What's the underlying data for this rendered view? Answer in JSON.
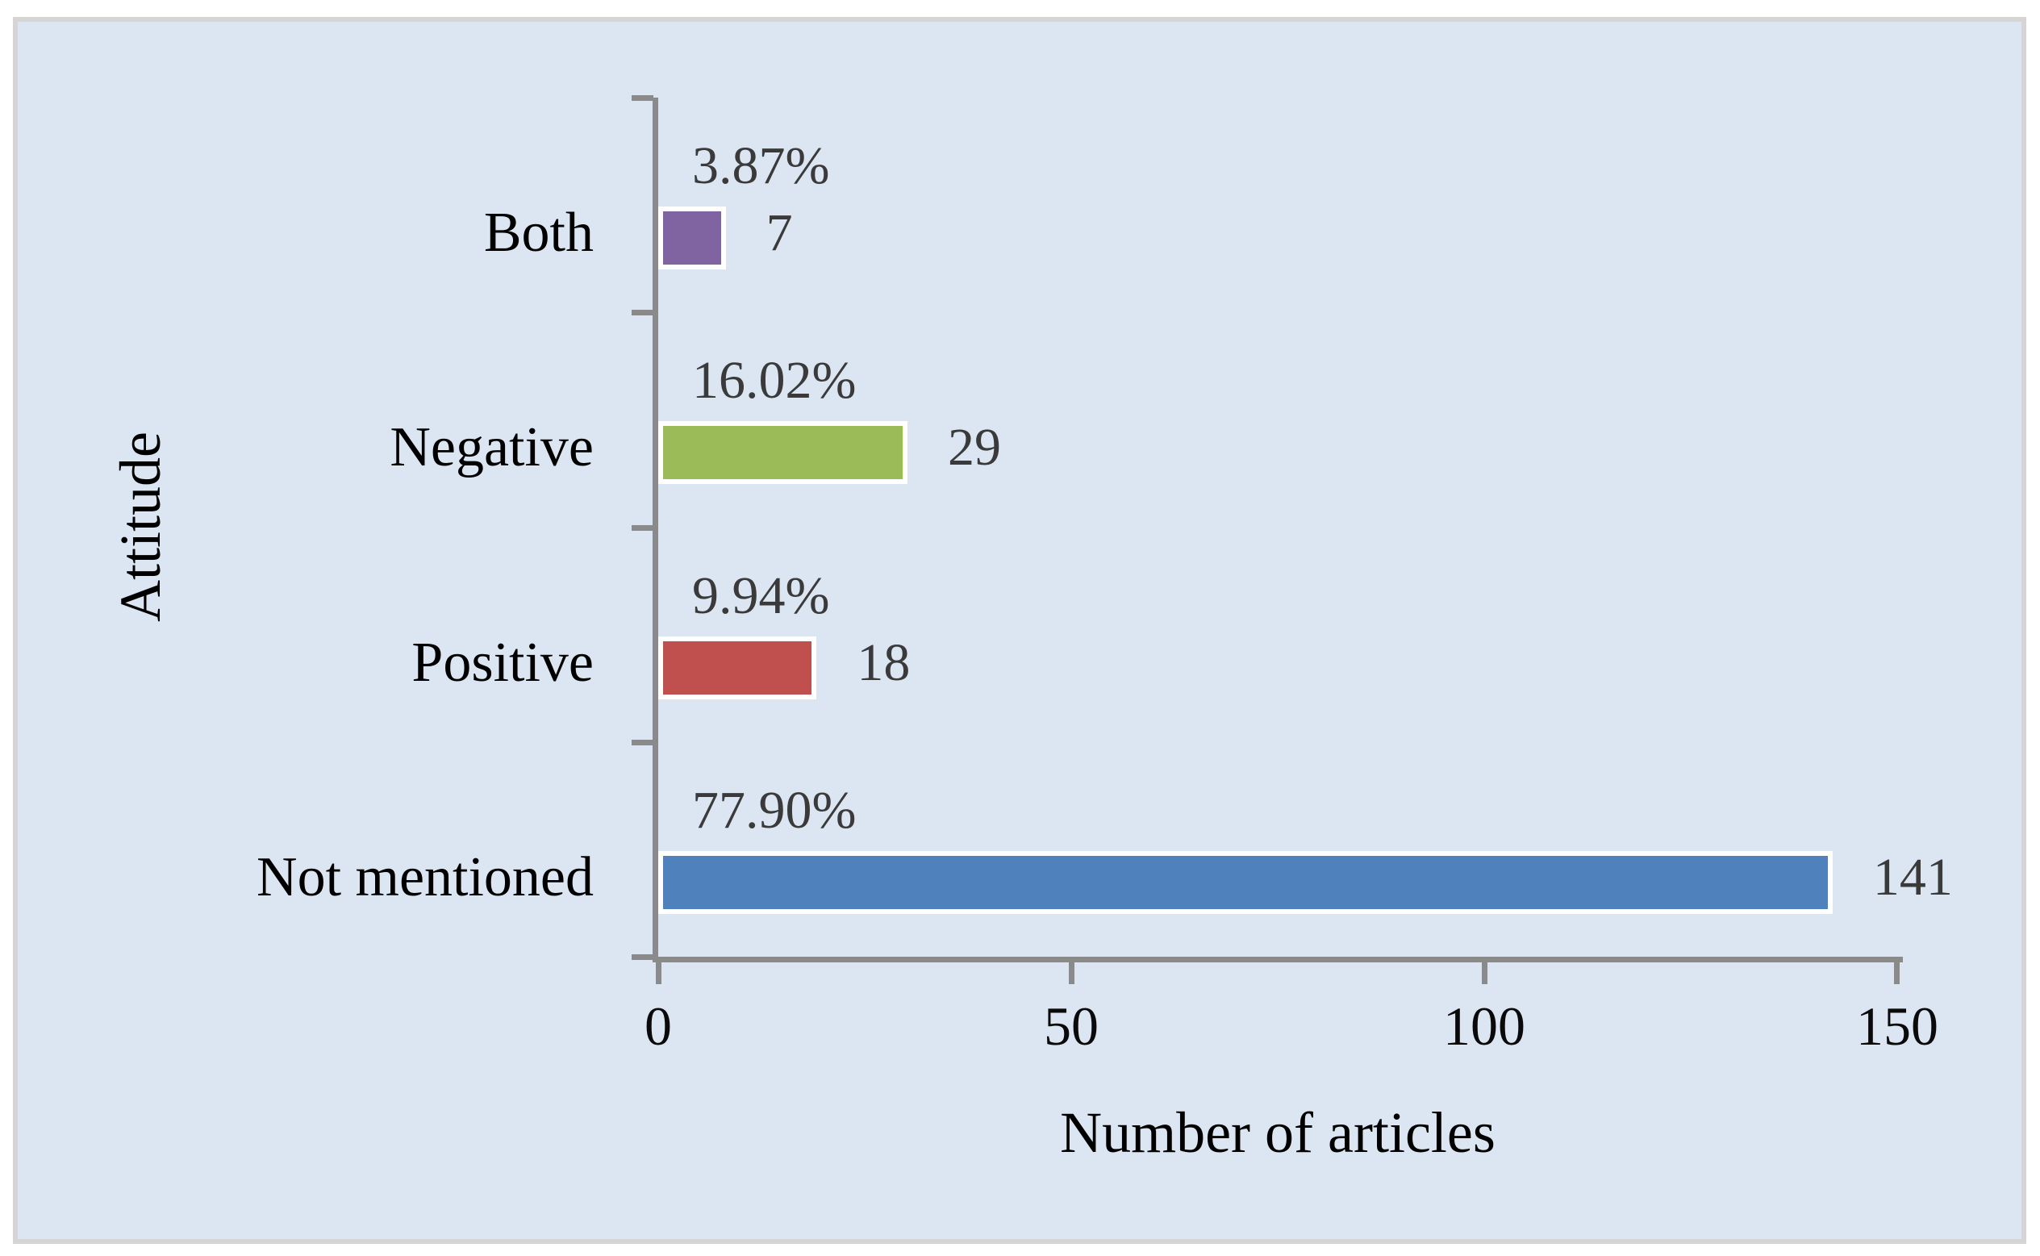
{
  "chart_data": {
    "type": "bar",
    "orientation": "horizontal",
    "xlabel": "Number of articles",
    "ylabel": "Attitude",
    "xlim": [
      0,
      150
    ],
    "xmax": 150,
    "x_ticks": [
      "0",
      "50",
      "100",
      "150"
    ],
    "grid": false,
    "legend": "none",
    "categories": [
      "Both",
      "Negative",
      "Positive",
      "Not mentioned"
    ],
    "rows": [
      {
        "label": "Both",
        "value": 7,
        "count_label": "7",
        "pct_label": "3.87%",
        "color": "#8064A2"
      },
      {
        "label": "Negative",
        "value": 29,
        "count_label": "29",
        "pct_label": "16.02%",
        "color": "#9BBB59"
      },
      {
        "label": "Positive",
        "value": 18,
        "count_label": "18",
        "pct_label": "9.94%",
        "color": "#C0504D"
      },
      {
        "label": "Not mentioned",
        "value": 141,
        "count_label": "141",
        "pct_label": "77.90%",
        "color": "#4F81BD"
      }
    ],
    "colors": {
      "plot_background": "#DCE6F2",
      "frame_border": "#D5D5D5",
      "axis": "#8A8A8A",
      "bar_border": "#FFFFFF",
      "data_label_text": "#3A3A3A",
      "category_text": "#000000"
    }
  }
}
